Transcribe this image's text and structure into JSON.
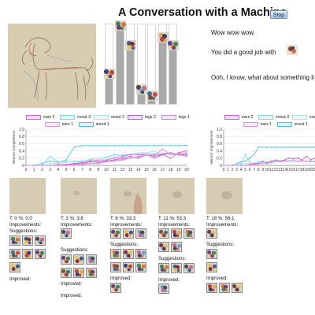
{
  "page": {
    "title": "A Conversation with a Machine",
    "stop_label": "Stop"
  },
  "conversation": {
    "lines": [
      "Wow wow wow.",
      "You did a good job with",
      "Ooh, I know, what about something li"
    ]
  },
  "bar_meter": {
    "levels": [
      0.4,
      1.0,
      0.75,
      0.2,
      0.12,
      0.85,
      0.75
    ]
  },
  "legend_left": {
    "row1": [
      "ears 2",
      "snout 3",
      "snout 2",
      "legs 2",
      "legs 1"
    ],
    "row2": [
      "ears 1",
      "snout 1"
    ]
  },
  "legend_right": {
    "row1": [
      "ears 2",
      "snout 3",
      "snout 2"
    ],
    "row2": [
      "ears 1",
      "snout 1"
    ]
  },
  "colors": {
    "ears 2": "#d25fd2",
    "snout 3": "#7fd4e6",
    "snout 2": "#a9e3ef",
    "legs 2": "#b45fd2",
    "legs 1": "#c38ad8",
    "ears 1": "#e48fd8",
    "snout 1": "#52bfe0",
    "bar_fill": "#a9a9a9",
    "button": "#9fc4ec"
  },
  "chart_data": [
    {
      "type": "line",
      "ylabel": "Neuron Competence",
      "xlabel": "",
      "ylim": [
        0,
        1.0
      ],
      "yticks": [
        "0",
        "0.2",
        "0.4",
        "0.6",
        "0.8",
        "1.0"
      ],
      "x": [
        0,
        1,
        2,
        3,
        4,
        5,
        6,
        7,
        8,
        9,
        10,
        11,
        12,
        13,
        14,
        15,
        16,
        17,
        18,
        19,
        20
      ],
      "series": [
        {
          "name": "snout 1",
          "values": [
            0,
            0,
            0.05,
            0.12,
            0.08,
            0.15,
            0.5,
            0.55,
            0.55,
            0.55,
            0.55,
            0.55,
            0.55,
            0.55,
            0.55,
            0.55,
            0.55,
            0.55,
            0.55,
            0.55,
            0.55
          ]
        },
        {
          "name": "snout 3",
          "values": [
            0,
            0,
            0,
            0.25,
            0.1,
            0.1,
            0.12,
            0.12,
            0.15,
            0.2,
            0.22,
            0.3,
            0.28,
            0.3,
            0.3,
            0.35,
            0.32,
            0.3,
            0.35,
            0.28,
            0.28
          ]
        },
        {
          "name": "snout 2",
          "values": [
            0,
            0,
            0,
            0.05,
            0.05,
            0.08,
            0.1,
            0.1,
            0.18,
            0.2,
            0.2,
            0.25,
            0.3,
            0.3,
            0.35,
            0.35,
            0.4,
            0.3,
            0.3,
            0.3,
            0.32
          ]
        },
        {
          "name": "ears 2",
          "values": [
            0,
            0,
            0,
            0,
            0.02,
            0.02,
            0.05,
            0.08,
            0.12,
            0.15,
            0.15,
            0.2,
            0.25,
            0.3,
            0.3,
            0.3,
            0.2,
            0.3,
            0.2,
            0.35,
            0.4
          ]
        },
        {
          "name": "legs 2",
          "values": [
            0,
            0,
            0,
            0,
            0,
            0.02,
            0.05,
            0.05,
            0.1,
            0.1,
            0.12,
            0.15,
            0.2,
            0.25,
            0.2,
            0.3,
            0.25,
            0.3,
            0.35,
            0.3,
            0.3
          ]
        },
        {
          "name": "legs 1",
          "values": [
            0,
            0,
            0,
            0,
            0,
            0,
            0.02,
            0.05,
            0.05,
            0.08,
            0.1,
            0.12,
            0.15,
            0.2,
            0.25,
            0.28,
            0.3,
            0.32,
            0.35,
            0.3,
            0.25
          ]
        },
        {
          "name": "ears 1",
          "values": [
            0,
            0,
            0,
            0,
            0,
            0,
            0,
            0.02,
            0.05,
            0.05,
            0.1,
            0.12,
            0.18,
            0.2,
            0.25,
            0.3,
            0.28,
            0.45,
            0.3,
            0.32,
            0.35
          ]
        }
      ]
    },
    {
      "type": "line",
      "ylabel": "Neuron Improvement",
      "xlabel": "",
      "ylim": [
        0,
        1.0
      ],
      "yticks": [
        "0",
        "0.2",
        "0.4",
        "0.6",
        "0.8",
        "1.0"
      ],
      "x": [
        0,
        1,
        2,
        3,
        4,
        5,
        6,
        7,
        8,
        9,
        10,
        11,
        12,
        13,
        14,
        15,
        16,
        17,
        18,
        19,
        20,
        21
      ],
      "series": [
        {
          "name": "snout 1",
          "values": [
            0,
            0,
            0,
            0.05,
            0.1,
            0.12,
            0.2,
            0.3,
            0.5,
            0.5,
            0.5,
            0.5,
            0.5,
            0.5,
            0.5,
            0.5,
            0.5,
            0.5,
            0.5,
            0.5,
            0.5,
            0.5
          ]
        },
        {
          "name": "snout 3",
          "values": [
            0,
            0,
            0,
            0.05,
            0.05,
            0.3,
            0.08,
            0.05,
            0.1,
            0.12,
            0.05,
            0.1,
            0.12,
            0.1,
            0.15,
            0.12,
            0.1,
            0.12,
            0.12,
            0.12,
            0.1,
            0.12
          ]
        },
        {
          "name": "snout 2",
          "values": [
            0,
            0,
            0,
            0,
            0.02,
            0.05,
            0.05,
            0.05,
            0.08,
            0.1,
            0.08,
            0.1,
            0.12,
            0.1,
            0.12,
            0.12,
            0.1,
            0.12,
            0.15,
            0.12,
            0.12,
            0.12
          ]
        },
        {
          "name": "ears 2",
          "values": [
            0,
            0,
            0,
            0,
            0,
            0,
            0.02,
            0.05,
            0.05,
            0.1,
            0.08,
            0.12,
            0.15,
            0.12,
            0.15,
            0.2,
            0.18,
            0.2,
            0.15,
            0.25,
            0.15,
            0.2
          ]
        },
        {
          "name": "ears 1",
          "values": [
            0,
            0,
            0,
            0,
            0,
            0,
            0,
            0.02,
            0.03,
            0.05,
            0.05,
            0.08,
            0.1,
            0.1,
            0.12,
            0.12,
            0.15,
            0.1,
            0.12,
            0.12,
            0.1,
            0.1
          ]
        }
      ]
    }
  ],
  "panels": [
    {
      "header": "T: 0 %: 0.0",
      "improvements": "Improvements:",
      "suggestions": "Suggestions:",
      "improved": "Improved:"
    },
    {
      "header": "T: 3 %: 3.8",
      "improvements": "Improvements:",
      "suggestions": "Suggestions:",
      "improved": "Improved:"
    },
    {
      "header": "T: 6 %: 33.3",
      "improvements": "Improvements:",
      "suggestions": "Suggestions:",
      "improved": "Improved:"
    },
    {
      "header": "T: 11 %: 53.3",
      "improvements": "Improvements:",
      "suggestions": "Suggestions:",
      "improved": "Improved:"
    },
    {
      "header": "T: 18 %: 56.1",
      "improvements": "Improvements:",
      "suggestions": "Suggestions:",
      "improved": "Improved:"
    }
  ],
  "icons": {
    "feature_thumb": "feature-visualization-icon"
  }
}
